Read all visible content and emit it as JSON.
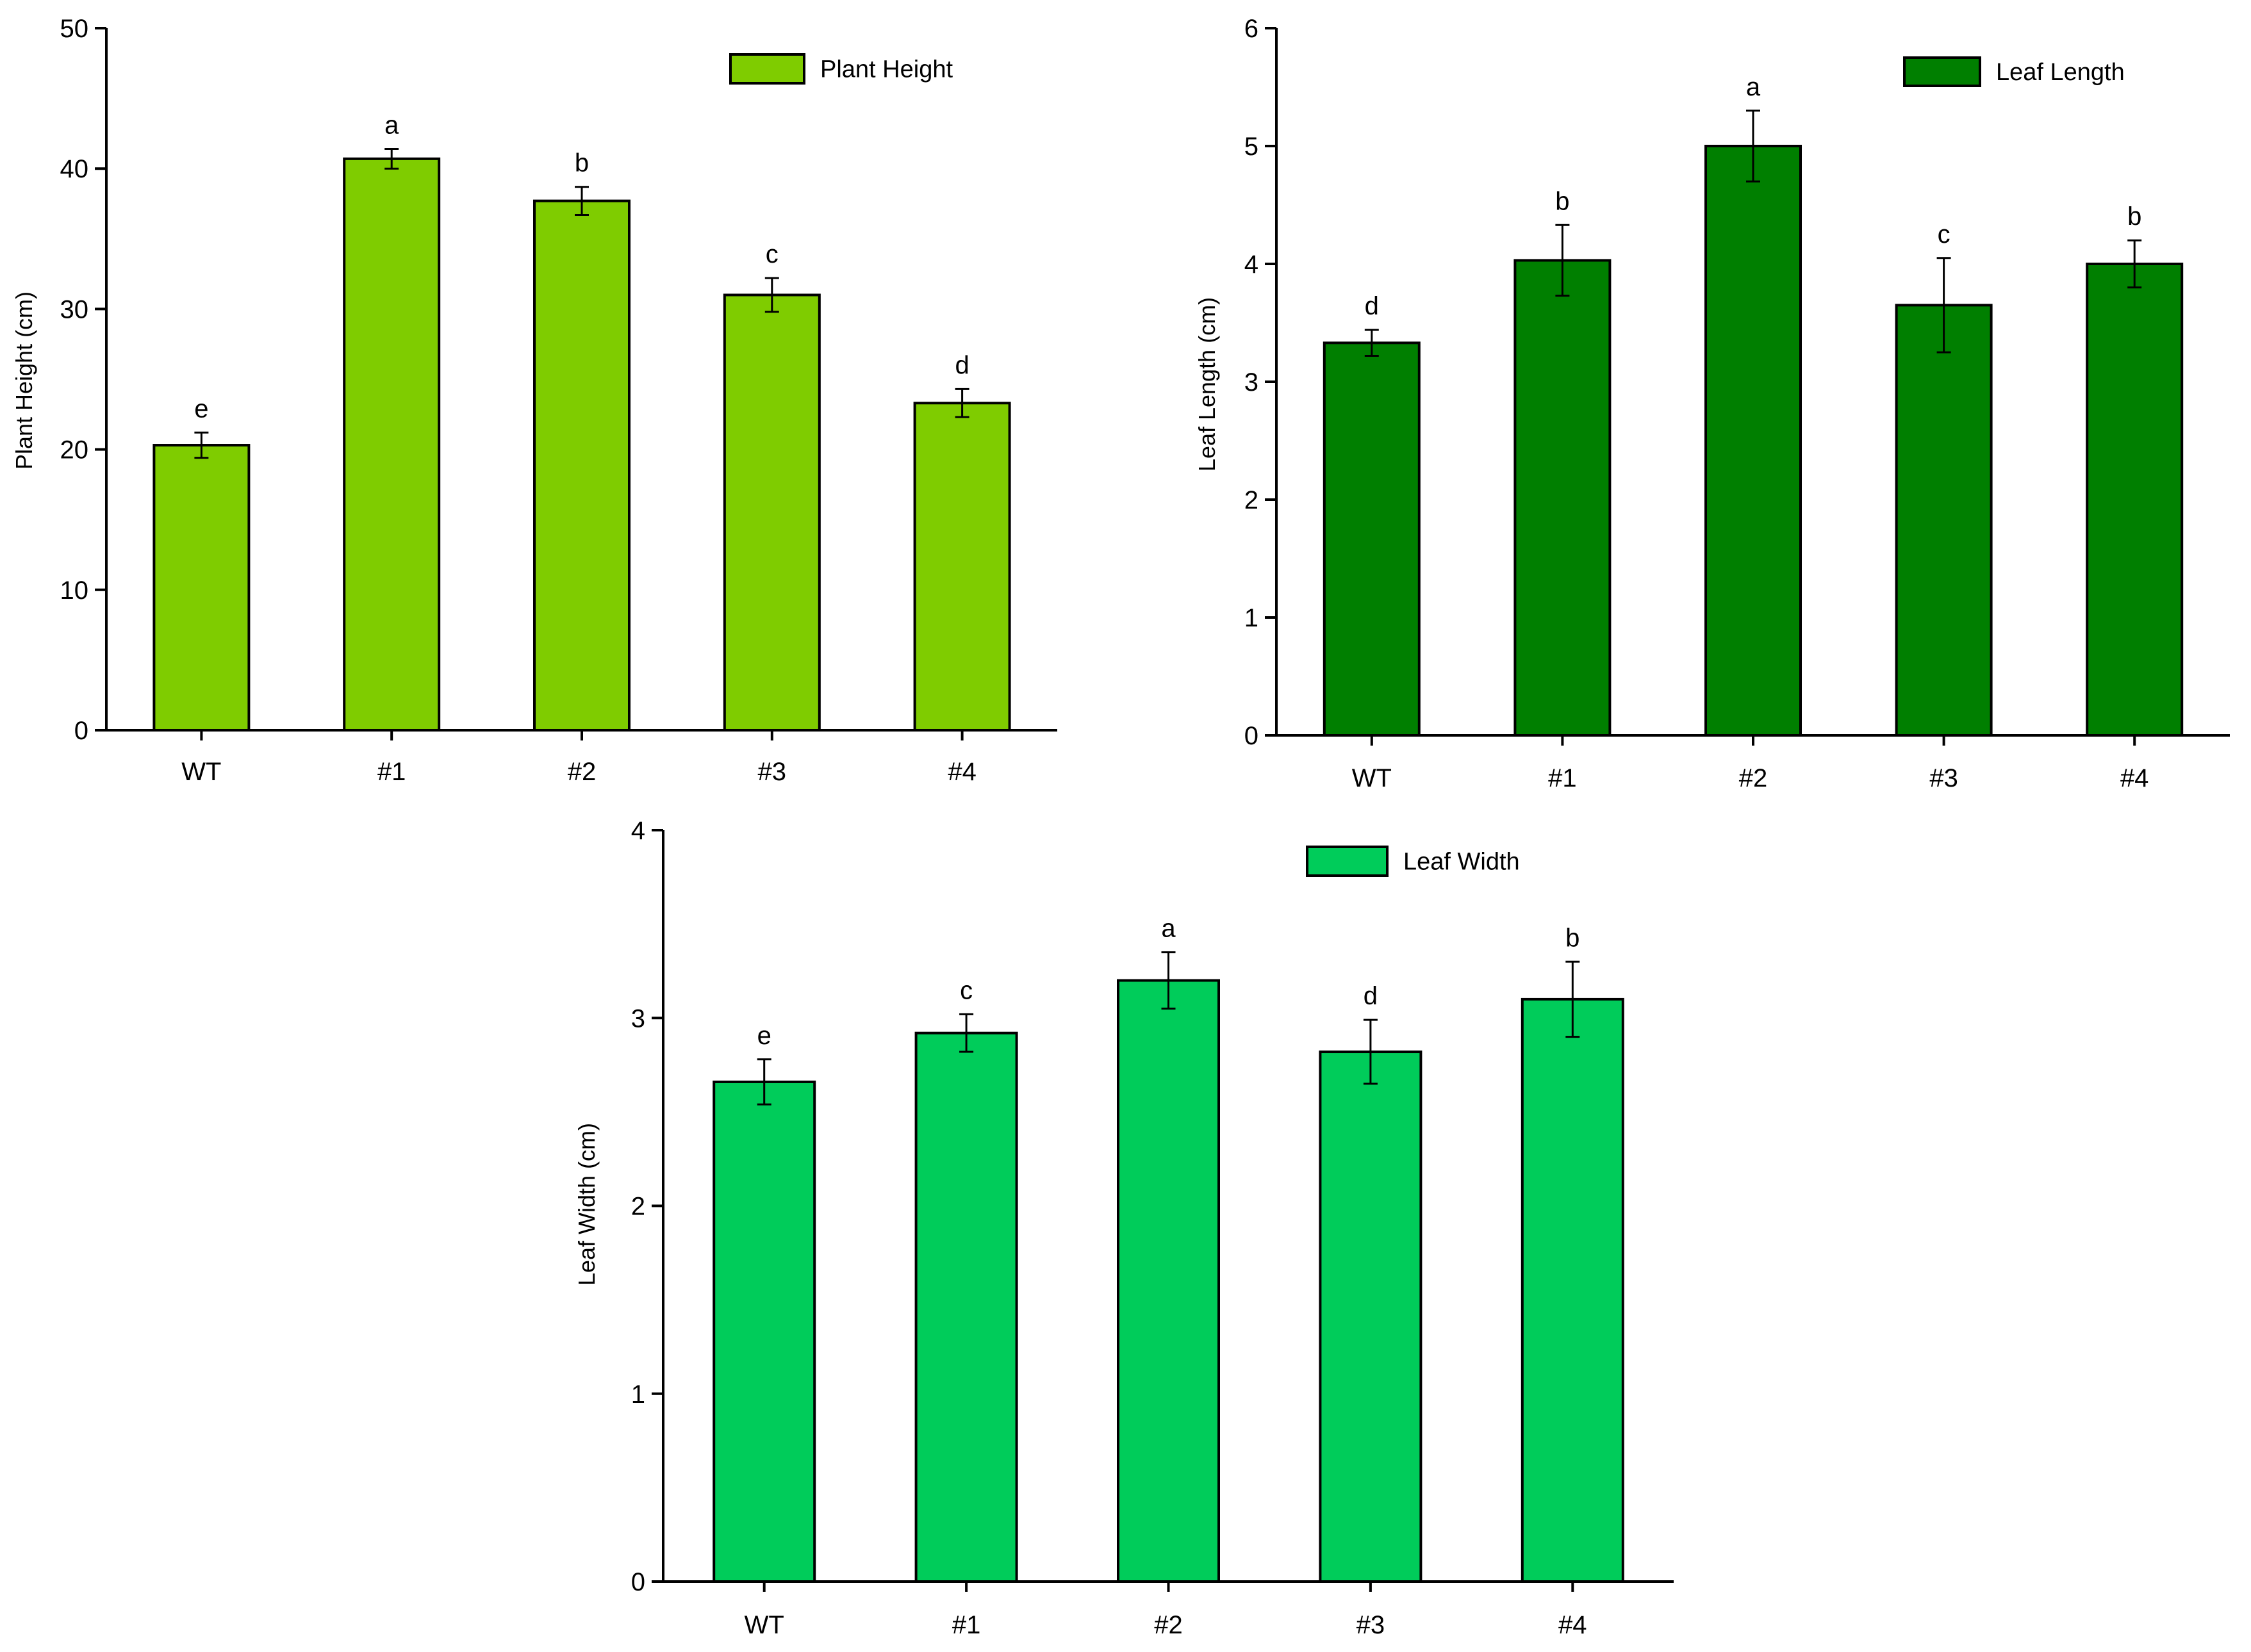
{
  "chart_data": [
    {
      "type": "bar",
      "title": "",
      "xlabel": "",
      "ylabel": "Plant Height (cm)",
      "ylim": [
        0,
        50
      ],
      "yticks": [
        0,
        10,
        20,
        30,
        40,
        50
      ],
      "categories": [
        "WT",
        "#1",
        "#2",
        "#3",
        "#4"
      ],
      "series": [
        {
          "name": "Plant Height",
          "color": "#7fcc00",
          "values": [
            20.3,
            40.7,
            37.7,
            31.0,
            23.3
          ],
          "errors": [
            0.9,
            0.7,
            1.0,
            1.2,
            1.0
          ],
          "significance": [
            "e",
            "a",
            "b",
            "c",
            "d"
          ]
        }
      ],
      "legend": "top-right",
      "grid": false
    },
    {
      "type": "bar",
      "title": "",
      "xlabel": "",
      "ylabel": "Leaf Length  (cm)",
      "ylim": [
        0,
        6
      ],
      "yticks": [
        0,
        1,
        2,
        3,
        4,
        5,
        6
      ],
      "categories": [
        "WT",
        "#1",
        "#2",
        "#3",
        "#4"
      ],
      "series": [
        {
          "name": "Leaf Length",
          "color": "#007f00",
          "values": [
            3.33,
            4.03,
            5.0,
            3.65,
            4.0
          ],
          "errors": [
            0.11,
            0.3,
            0.3,
            0.4,
            0.2
          ],
          "significance": [
            "d",
            "b",
            "a",
            "c",
            "b"
          ]
        }
      ],
      "legend": "top-right",
      "grid": false
    },
    {
      "type": "bar",
      "title": "",
      "xlabel": "",
      "ylabel": "Leaf Width (cm)",
      "ylim": [
        0,
        4
      ],
      "yticks": [
        0,
        1,
        2,
        3,
        4
      ],
      "categories": [
        "WT",
        "#1",
        "#2",
        "#3",
        "#4"
      ],
      "series": [
        {
          "name": "Leaf Width",
          "color": "#00cc5a",
          "values": [
            2.66,
            2.92,
            3.2,
            2.82,
            3.1
          ],
          "errors": [
            0.12,
            0.1,
            0.15,
            0.17,
            0.2
          ],
          "significance": [
            "e",
            "c",
            "a",
            "d",
            "b"
          ]
        }
      ],
      "legend": "top-right",
      "grid": false
    }
  ]
}
